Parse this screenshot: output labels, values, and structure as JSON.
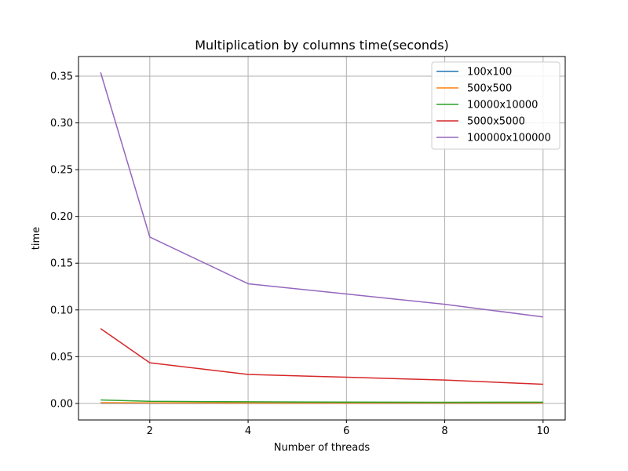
{
  "chart_data": {
    "type": "line",
    "title": "Multiplication by columns time(seconds)",
    "xlabel": "Number of threads",
    "ylabel": "time",
    "x": [
      1,
      2,
      4,
      6,
      8,
      10
    ],
    "xticks": [
      2,
      4,
      6,
      8,
      10
    ],
    "yticks": [
      0.0,
      0.05,
      0.1,
      0.15,
      0.2,
      0.25,
      0.3,
      0.35
    ],
    "ytick_labels": [
      "0.00",
      "0.05",
      "0.10",
      "0.15",
      "0.20",
      "0.25",
      "0.30",
      "0.35"
    ],
    "xlim": [
      0.55,
      10.45
    ],
    "ylim": [
      -0.0177,
      0.371
    ],
    "grid": true,
    "legend_position": "upper right",
    "series": [
      {
        "name": "100x100",
        "color": "#1f77b4",
        "values": [
          0.0003,
          0.0002,
          0.0002,
          0.0002,
          0.0002,
          0.0002
        ]
      },
      {
        "name": "500x500",
        "color": "#ff7f0e",
        "values": [
          0.0008,
          0.0006,
          0.0005,
          0.0005,
          0.0005,
          0.0005
        ]
      },
      {
        "name": "10000x10000",
        "color": "#2ca02c",
        "values": [
          0.0037,
          0.0022,
          0.0017,
          0.0014,
          0.0012,
          0.0013
        ]
      },
      {
        "name": "5000x5000",
        "color": "#d62728",
        "values": [
          0.08,
          0.0435,
          0.031,
          0.028,
          0.025,
          0.0205
        ]
      },
      {
        "name": "100000x100000",
        "color": "#9467bd",
        "values": [
          0.354,
          0.178,
          0.128,
          0.117,
          0.106,
          0.0925
        ]
      }
    ]
  }
}
